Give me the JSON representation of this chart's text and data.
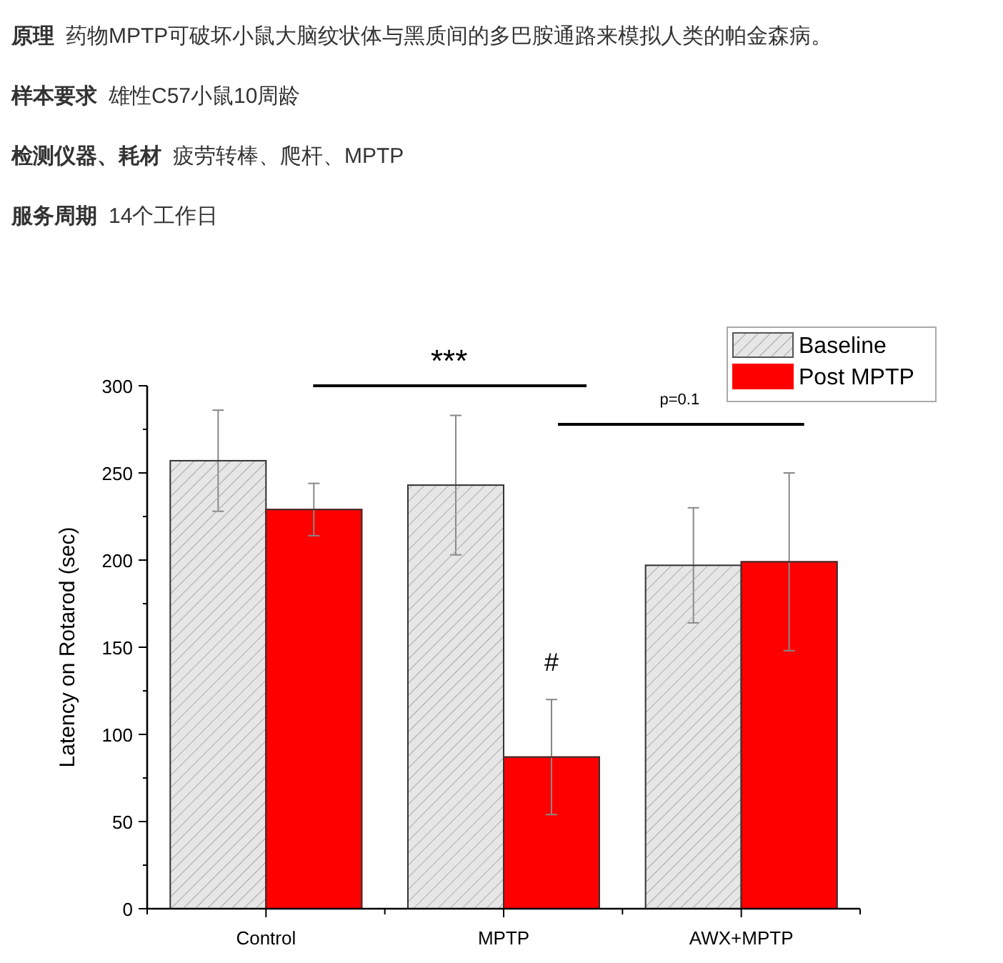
{
  "chart_data": {
    "type": "bar",
    "annotations": [
      "原理",
      "药物MPTP可破坏小鼠大脑纹状体与黑质间的多巴胺通路来模拟人类的帕金森病。",
      "样本要求",
      "雄性C57小鼠10周龄",
      "检测仪器、耗材",
      "疲劳转棒、爬杆、MPTP",
      "服务周期",
      "14个工作日",
      "***",
      "p=0.1",
      "#"
    ],
    "ylabel": "Latency on Rotarod (sec)",
    "categories": [
      "Control",
      "MPTP",
      "AWX+MPTP"
    ],
    "series": [
      {
        "name": "Baseline",
        "color": "#e6e6e6",
        "values": [
          257,
          243,
          197
        ],
        "errors": [
          29,
          40,
          33
        ]
      },
      {
        "name": "Post MPTP",
        "color": "#ff0000",
        "values": [
          229,
          87,
          199
        ],
        "errors": [
          15,
          33,
          51
        ]
      }
    ],
    "ylim": [
      0,
      300
    ],
    "yticks": [
      0,
      {
        "value": 25,
        "label": null
      },
      50,
      {
        "value": 75,
        "label": null
      },
      100,
      {
        "value": 125,
        "label": null
      },
      150,
      {
        "value": 175,
        "label": null
      },
      200,
      {
        "value": 225,
        "label": null
      },
      250,
      {
        "value": 275,
        "label": null
      },
      300
    ],
    "grid": false,
    "legend": "top right"
  }
}
